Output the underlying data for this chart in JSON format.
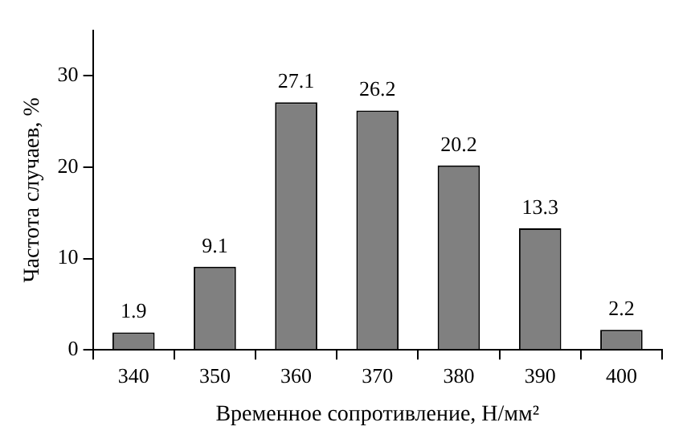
{
  "chart_data": {
    "type": "bar",
    "xlabel": "Временное сопротивление, Н/мм²",
    "ylabel": "Частота случаев, %",
    "categories": [
      "340",
      "350",
      "360",
      "370",
      "380",
      "390",
      "400"
    ],
    "values": [
      1.9,
      9.1,
      27.1,
      26.2,
      20.2,
      13.3,
      2.2
    ],
    "color": "#808080",
    "ylim": [
      0,
      35
    ],
    "yticks": [
      0,
      10,
      20,
      30
    ],
    "grid": false,
    "data_labels": true
  }
}
